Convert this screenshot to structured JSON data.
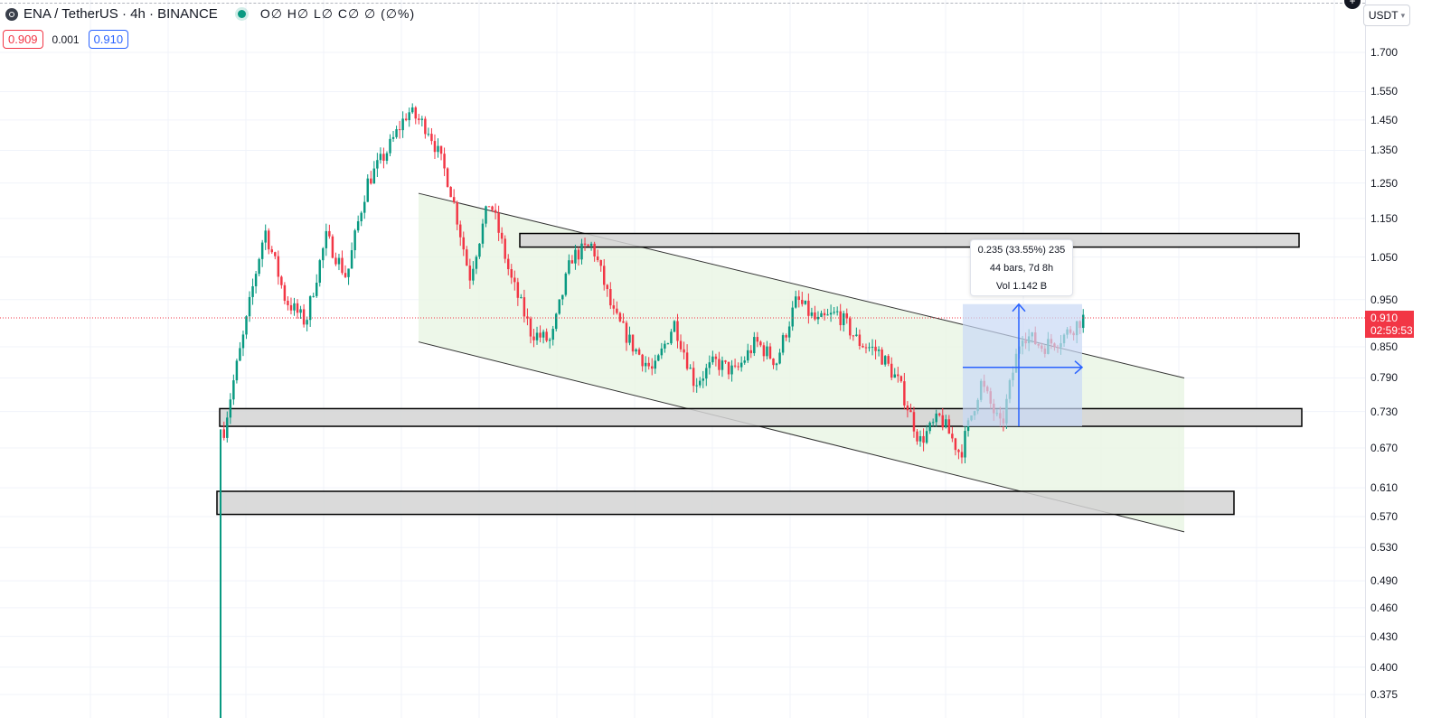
{
  "header": {
    "symbol": "ENA / TetherUS · 4h · BINANCE",
    "ohlc": "O∅ H∅ L∅ C∅ ∅ (∅%)",
    "bid": "0.909",
    "spread": "0.001",
    "ask": "0.910",
    "currency": "USDT"
  },
  "current_price": {
    "value": "0.910",
    "countdown": "02:59:53",
    "color": "#f23645"
  },
  "colors": {
    "up": "#089981",
    "down": "#f23645",
    "channel_fill": "#e8f5e4",
    "zone_fill": "#d4d4d4",
    "measure_fill": "#c9d9f5",
    "measure_line": "#2962ff"
  },
  "measure": {
    "line1": "0.235 (33.55%) 235",
    "line2": "44 bars, 7d 8h",
    "line3": "Vol 1.142 B"
  },
  "chart_data": {
    "type": "candlestick",
    "symbol": "ENA/USDT",
    "timeframe": "4h",
    "exchange": "BINANCE",
    "y_scale": "log",
    "ylim": [
      0.36,
      1.85
    ],
    "grid": true,
    "y_ticks": [
      "1.700",
      "1.550",
      "1.450",
      "1.350",
      "1.250",
      "1.150",
      "1.050",
      "0.950",
      "0.850",
      "0.790",
      "0.730",
      "0.670",
      "0.610",
      "0.570",
      "0.530",
      "0.490",
      "0.460",
      "0.430",
      "0.400",
      "0.375"
    ],
    "approx_close_path": [
      0.7,
      0.88,
      1.12,
      0.95,
      0.9,
      1.1,
      1.0,
      1.25,
      1.35,
      1.48,
      1.42,
      1.25,
      1.0,
      1.2,
      1.0,
      0.88,
      0.86,
      1.05,
      1.08,
      0.92,
      0.85,
      0.8,
      0.9,
      0.78,
      0.82,
      0.8,
      0.86,
      0.82,
      0.95,
      0.9,
      0.92,
      0.86,
      0.84,
      0.78,
      0.68,
      0.72,
      0.66,
      0.78,
      0.7,
      0.88,
      0.85,
      0.87,
      0.91
    ],
    "zones": [
      {
        "low": 1.075,
        "high": 1.11
      },
      {
        "low": 0.705,
        "high": 0.735
      },
      {
        "low": 0.573,
        "high": 0.605
      }
    ],
    "channel": {
      "upper": [
        1.22,
        0.79
      ],
      "lower": [
        0.86,
        0.55
      ]
    },
    "measurement": {
      "from": 0.705,
      "to": 0.94,
      "change": 0.235,
      "percent": 33.55,
      "bars": 44
    }
  }
}
